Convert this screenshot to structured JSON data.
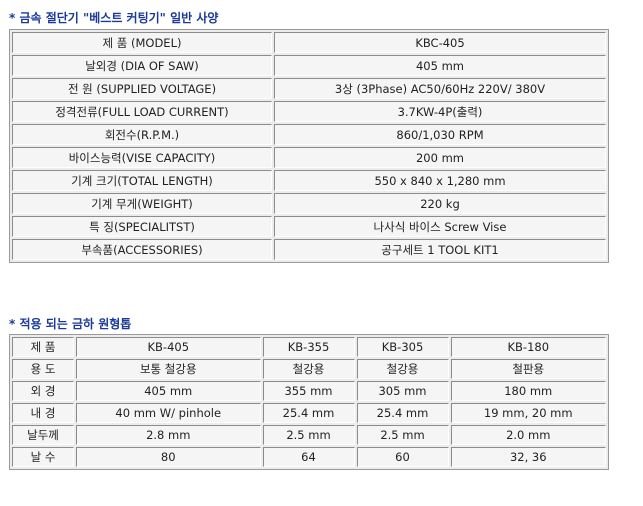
{
  "spec_section": {
    "title": "* 금속 절단기 \"베스트 커팅기\" 일반 사양",
    "rows": [
      {
        "label": "제 품 (MODEL)",
        "value": "KBC-405"
      },
      {
        "label": "날외경 (DIA OF SAW)",
        "value": "405 mm"
      },
      {
        "label": "전 원 (SUPPLIED VOLTAGE)",
        "value": "3상 (3Phase) AC50/60Hz 220V/ 380V"
      },
      {
        "label": "정격전류(FULL LOAD CURRENT)",
        "value": "3.7KW-4P(출력)"
      },
      {
        "label": "회전수(R.P.M.)",
        "value": "860/1,030 RPM"
      },
      {
        "label": "바이스능력(VISE CAPACITY)",
        "value": "200 mm"
      },
      {
        "label": "기계 크기(TOTAL LENGTH)",
        "value": "550 x 840 x 1,280 mm"
      },
      {
        "label": "기계 무게(WEIGHT)",
        "value": "220 kg"
      },
      {
        "label": "특 징(SPECIALITST)",
        "value": "나사식 바이스 Screw Vise"
      },
      {
        "label": "부속품(ACCESSORIES)",
        "value": "공구세트 1 TOOL KIT1"
      }
    ]
  },
  "blade_section": {
    "title": "* 적용 되는 금하 원형톱",
    "rows": [
      {
        "label": "제 품",
        "cells": [
          "KB-405",
          "KB-355",
          "KB-305",
          "KB-180"
        ]
      },
      {
        "label": "용 도",
        "cells": [
          "보통 철강용",
          "철강용",
          "철강용",
          "철판용"
        ]
      },
      {
        "label": "외 경",
        "cells": [
          "405 mm",
          "355 mm",
          "305 mm",
          "180 mm"
        ]
      },
      {
        "label": "내 경",
        "cells": [
          "40 mm W/ pinhole",
          "25.4 mm",
          "25.4 mm",
          "19 mm, 20 mm"
        ]
      },
      {
        "label": "날두께",
        "cells": [
          "2.8 mm",
          "2.5 mm",
          "2.5 mm",
          "2.0 mm"
        ]
      },
      {
        "label": "날 수",
        "cells": [
          "80",
          "64",
          "60",
          "32, 36"
        ]
      }
    ]
  },
  "colors": {
    "title": "#1a3a9a",
    "cell_bg": "#f5f5f5"
  }
}
